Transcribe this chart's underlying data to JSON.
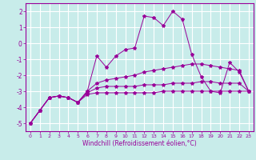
{
  "xlabel": "Windchill (Refroidissement éolien,°C)",
  "background_color": "#c8ecea",
  "grid_color": "#ffffff",
  "line_color": "#990099",
  "x_values": [
    0,
    1,
    2,
    3,
    4,
    5,
    6,
    7,
    8,
    9,
    10,
    11,
    12,
    13,
    14,
    15,
    16,
    17,
    18,
    19,
    20,
    21,
    22,
    23
  ],
  "series1": [
    -5.0,
    -4.2,
    -3.4,
    -3.3,
    -3.4,
    -3.7,
    -3.0,
    -0.8,
    -1.5,
    -0.8,
    -0.4,
    -0.3,
    1.7,
    1.6,
    1.1,
    2.0,
    1.5,
    -0.7,
    -2.1,
    -3.0,
    -3.1,
    -1.2,
    -1.8,
    -3.0
  ],
  "series2": [
    -5.0,
    -4.2,
    -3.4,
    -3.3,
    -3.4,
    -3.7,
    -3.0,
    -2.5,
    -2.3,
    -2.2,
    -2.1,
    -2.0,
    -1.8,
    -1.7,
    -1.6,
    -1.5,
    -1.4,
    -1.3,
    -1.3,
    -1.4,
    -1.5,
    -1.6,
    -1.7,
    -3.0
  ],
  "series3": [
    -5.0,
    -4.2,
    -3.4,
    -3.3,
    -3.4,
    -3.7,
    -3.1,
    -2.8,
    -2.7,
    -2.7,
    -2.7,
    -2.7,
    -2.6,
    -2.6,
    -2.6,
    -2.5,
    -2.5,
    -2.5,
    -2.4,
    -2.4,
    -2.5,
    -2.5,
    -2.5,
    -3.0
  ],
  "series4": [
    -5.0,
    -4.2,
    -3.4,
    -3.3,
    -3.4,
    -3.7,
    -3.2,
    -3.1,
    -3.1,
    -3.1,
    -3.1,
    -3.1,
    -3.1,
    -3.1,
    -3.0,
    -3.0,
    -3.0,
    -3.0,
    -3.0,
    -3.0,
    -3.0,
    -3.0,
    -3.0,
    -3.0
  ],
  "ylim": [
    -5.5,
    2.5
  ],
  "xlim": [
    -0.5,
    23.5
  ],
  "yticks": [
    -5,
    -4,
    -3,
    -2,
    -1,
    0,
    1,
    2
  ],
  "xticks": [
    0,
    1,
    2,
    3,
    4,
    5,
    6,
    7,
    8,
    9,
    10,
    11,
    12,
    13,
    14,
    15,
    16,
    17,
    18,
    19,
    20,
    21,
    22,
    23
  ]
}
